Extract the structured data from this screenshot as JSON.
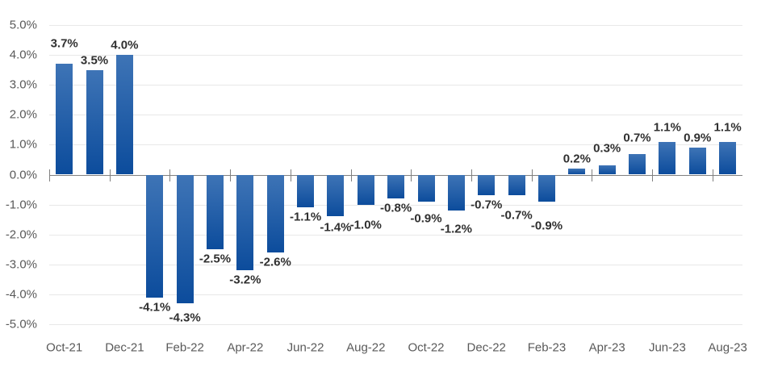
{
  "chart_data": {
    "type": "bar",
    "title": "",
    "xlabel": "",
    "ylabel": "",
    "x_tick_labels": [
      "Oct-21",
      "Dec-21",
      "Feb-22",
      "Apr-22",
      "Jun-22",
      "Aug-22",
      "Oct-22",
      "Dec-22",
      "Feb-23",
      "Apr-23",
      "Jun-23",
      "Aug-23"
    ],
    "categories": [
      "Oct-21",
      "Nov-21",
      "Dec-21",
      "Jan-22",
      "Feb-22",
      "Mar-22",
      "Apr-22",
      "May-22",
      "Jun-22",
      "Jul-22",
      "Aug-22",
      "Sep-22",
      "Oct-22",
      "Nov-22",
      "Dec-22",
      "Jan-23",
      "Feb-23",
      "Mar-23",
      "Apr-23",
      "May-23",
      "Jun-23",
      "Jul-23",
      "Aug-23"
    ],
    "values": [
      3.7,
      3.5,
      4.0,
      -4.1,
      -4.3,
      -2.5,
      -3.2,
      -2.6,
      -1.1,
      -1.4,
      -1.0,
      -0.8,
      -0.9,
      -1.2,
      -0.7,
      -0.7,
      -0.9,
      0.2,
      0.3,
      0.7,
      1.1,
      0.9,
      1.1
    ],
    "data_labels": [
      "3.7%",
      "3.5%",
      "4.0%",
      "-4.1%",
      "-4.3%",
      "-2.5%",
      "-3.2%",
      "-2.6%",
      "-1.1%",
      "-1.4%",
      "-1.0%",
      "-0.8%",
      "-0.9%",
      "-1.2%",
      "-0.7%",
      "-0.7%",
      "-0.9%",
      "0.2%",
      "0.3%",
      "0.7%",
      "1.1%",
      "0.9%",
      "1.1%"
    ],
    "y_tick_labels": [
      "5.0%",
      "4.0%",
      "3.0%",
      "2.0%",
      "1.0%",
      "0.0%",
      "-1.0%",
      "-2.0%",
      "-3.0%",
      "-4.0%",
      "-5.0%"
    ],
    "ylim": [
      -5,
      5
    ],
    "y_step": 1.0,
    "grid": true,
    "legend": false,
    "colors": {
      "bar_gradient_top": "#3e74b6",
      "bar_gradient_bottom": "#0c4c9c",
      "gridline": "#e8e8e8",
      "axis_line": "#808080",
      "axis_label": "#595959",
      "data_label": "#303030",
      "background": "#ffffff"
    }
  }
}
